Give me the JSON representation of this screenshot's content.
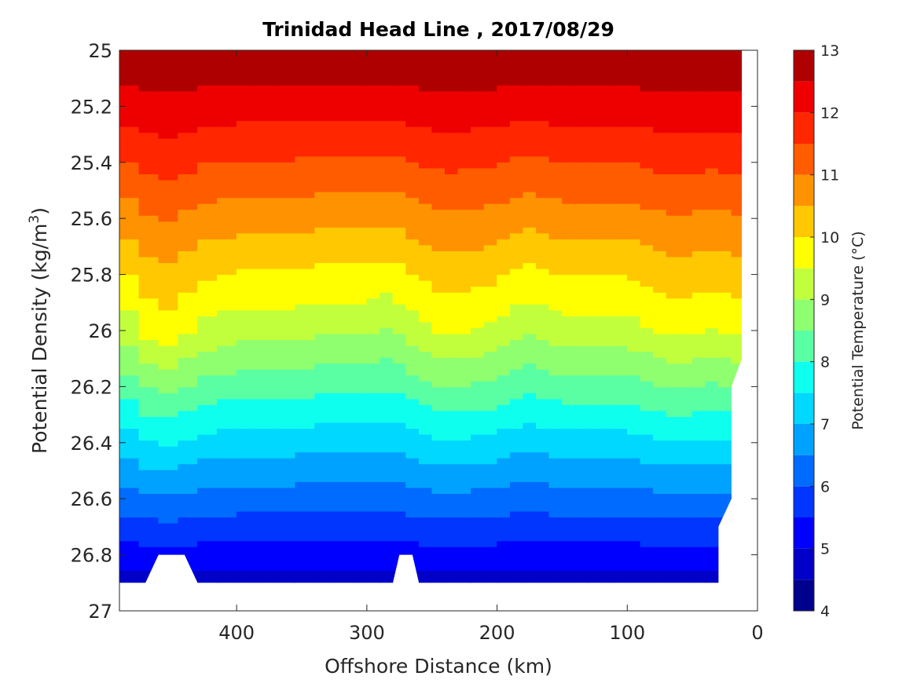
{
  "chart_data": {
    "type": "heatmap",
    "subtype": "filled-contour",
    "title": "Trinidad Head Line , 2017/08/29",
    "xlabel": "Offshore Distance (km)",
    "ylabel_text": "Potential Density (kg/m",
    "ylabel_sup": "3",
    "ylabel_close": ")",
    "colorbar_label": "Potential Temperature (°C)",
    "x_reversed": true,
    "y_reversed": true,
    "xlim": [
      490,
      0
    ],
    "ylim": [
      25,
      27
    ],
    "xticks": [
      400,
      300,
      200,
      100,
      0
    ],
    "yticks": [
      25,
      25.2,
      25.4,
      25.6,
      25.8,
      26,
      26.2,
      26.4,
      26.6,
      26.8,
      27
    ],
    "ytick_labels": [
      "25",
      "25.2",
      "25.4",
      "25.6",
      "25.8",
      "26",
      "26.2",
      "26.4",
      "26.6",
      "26.8",
      "27"
    ],
    "colorbar_range": [
      4,
      13
    ],
    "colorbar_ticks": [
      4,
      5,
      6,
      7,
      8,
      9,
      10,
      11,
      12,
      13
    ],
    "levels": [
      4,
      4.5,
      5,
      5.5,
      6,
      6.5,
      7,
      7.5,
      8,
      8.5,
      9,
      9.5,
      10,
      10.5,
      11,
      11.5,
      12,
      12.5,
      13
    ],
    "colors": [
      "#00008f",
      "#0000c8",
      "#0000ff",
      "#0036ff",
      "#006cff",
      "#00a2ff",
      "#00d8ff",
      "#0fffef",
      "#5affa4",
      "#8fff6f",
      "#c1ff3d",
      "#ffff00",
      "#ffc800",
      "#ff9200",
      "#ff5c00",
      "#ff2600",
      "#ef0000",
      "#af0000"
    ],
    "x": [
      490,
      475,
      460,
      445,
      430,
      415,
      400,
      385,
      370,
      355,
      340,
      325,
      310,
      300,
      290,
      280,
      270,
      260,
      250,
      240,
      230,
      220,
      210,
      200,
      190,
      180,
      170,
      160,
      150,
      140,
      130,
      120,
      110,
      100,
      90,
      80,
      70,
      60,
      50,
      40,
      30,
      20,
      12
    ],
    "mid_isopycnal_temperature_at_26": [
      9.0,
      9.5,
      9.8,
      9.7,
      9.4,
      9.3,
      9.2,
      9.2,
      9.2,
      9.2,
      9.1,
      9.1,
      9.1,
      9.1,
      9.0,
      9.0,
      9.2,
      9.3,
      9.5,
      9.55,
      9.55,
      9.5,
      9.45,
      9.4,
      9.2,
      9.1,
      9.1,
      9.2,
      9.3,
      9.3,
      9.3,
      9.3,
      9.3,
      9.3,
      9.4,
      9.5,
      9.6,
      9.6,
      9.6,
      9.5,
      9.5,
      9.6,
      9.6
    ],
    "data_bottom_density": 26.9,
    "data_gaps": [
      {
        "x_from": 470,
        "x_to": 430,
        "peak_density": 26.8
      },
      {
        "x_from": 280,
        "x_to": 260,
        "peak_density": 26.8
      }
    ]
  }
}
